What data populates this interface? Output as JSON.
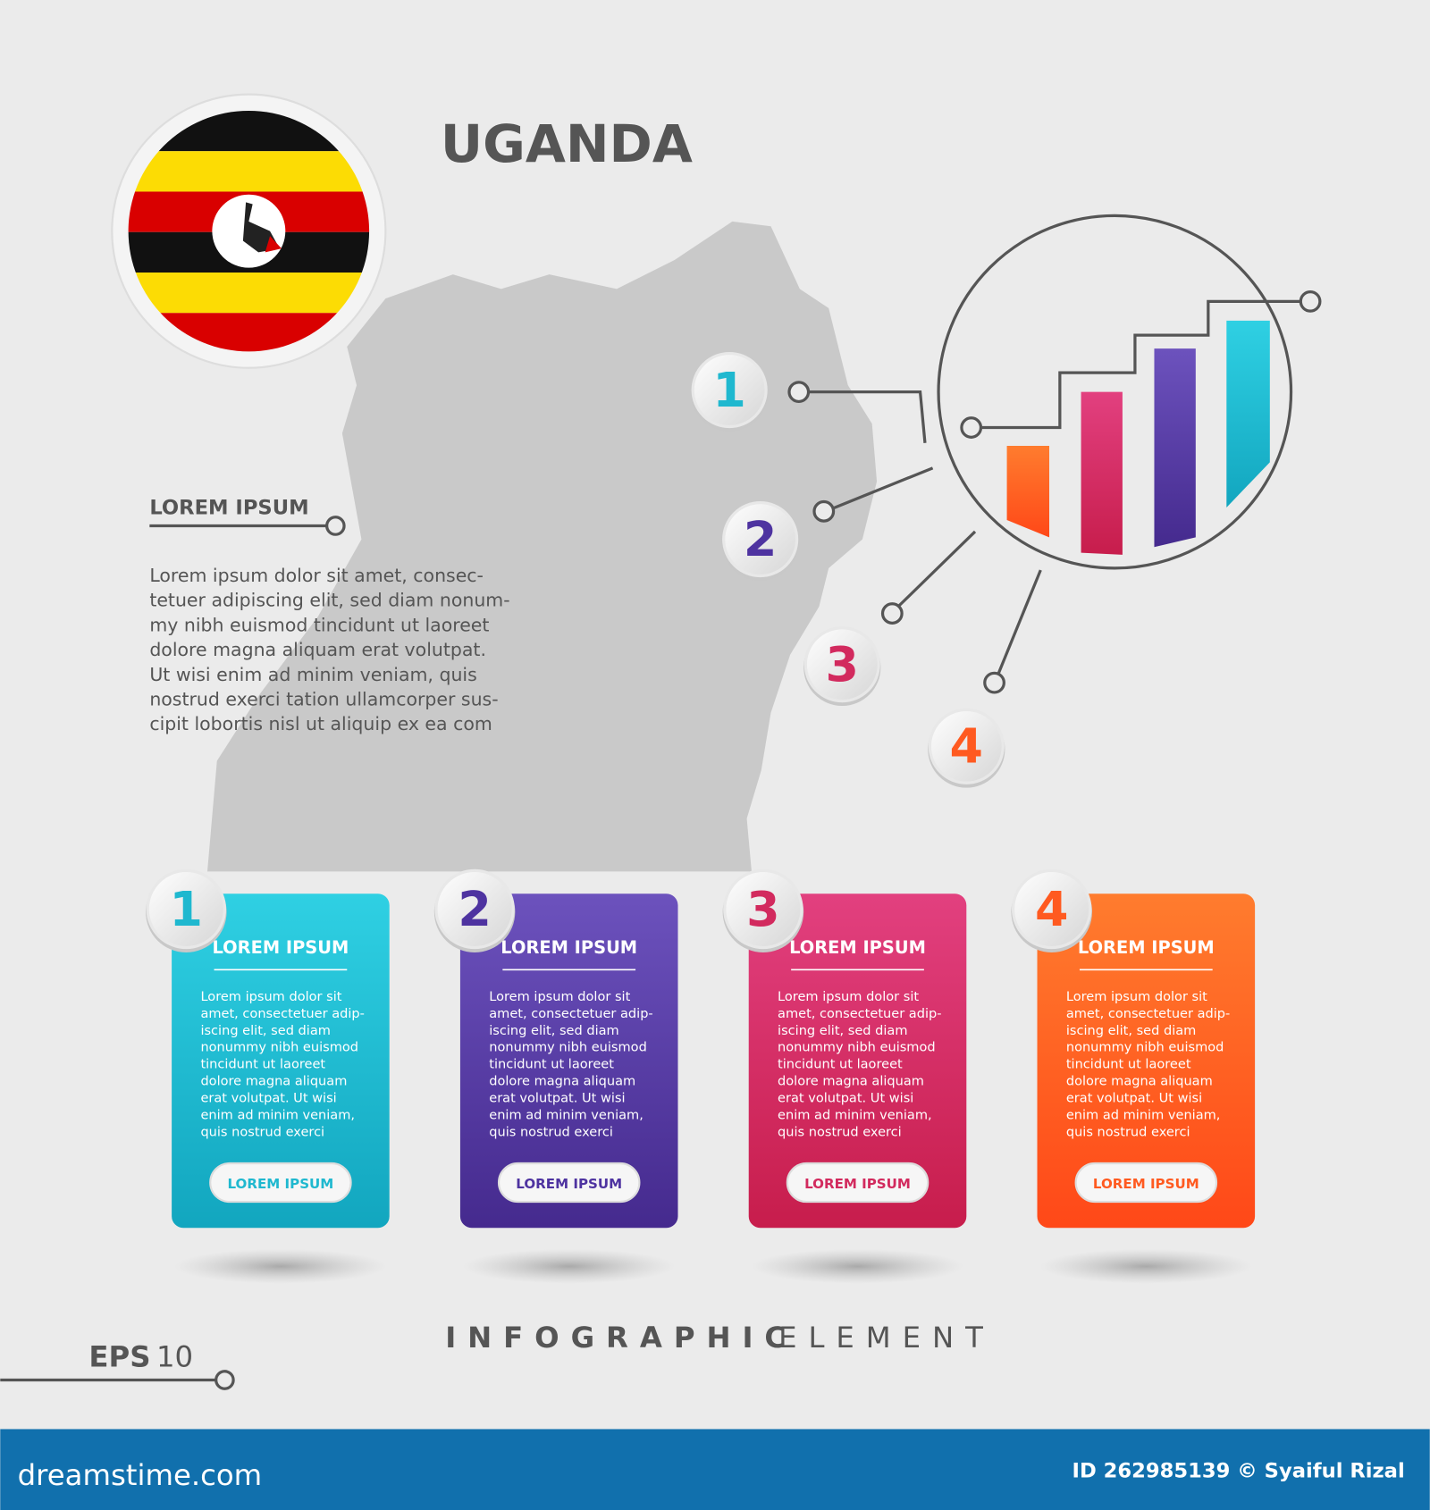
{
  "header": {
    "title": "UGANDA"
  },
  "sidebar": {
    "heading": "LOREM IPSUM",
    "lines": [
      "Lorem ipsum dolor sit amet, consec-",
      "tetuer adipiscing elit, sed diam nonum-",
      "my nibh euismod tincidunt ut laoreet",
      "dolore magna aliquam erat volutpat.",
      "Ut wisi enim ad minim veniam, quis",
      "nostrud exerci tation ullamcorper sus-",
      "cipit lobortis nisl ut aliquip ex ea com"
    ]
  },
  "markers": [
    "1",
    "2",
    "3",
    "4"
  ],
  "cards": [
    {
      "number": "1",
      "title": "LOREM IPSUM",
      "lines": [
        "Lorem ipsum dolor sit",
        "amet, consectetuer adip-",
        "iscing elit, sed diam",
        "nonummy nibh euismod",
        "tincidunt ut laoreet",
        "dolore magna aliquam",
        "erat volutpat. Ut wisi",
        "enim ad minim veniam,",
        "quis nostrud exerci"
      ],
      "button": "LOREM IPSUM"
    },
    {
      "number": "2",
      "title": "LOREM IPSUM",
      "lines": [
        "Lorem ipsum dolor sit",
        "amet, consectetuer adip-",
        "iscing elit, sed diam",
        "nonummy nibh euismod",
        "tincidunt ut laoreet",
        "dolore magna aliquam",
        "erat volutpat. Ut wisi",
        "enim ad minim veniam,",
        "quis nostrud exerci"
      ],
      "button": "LOREM IPSUM"
    },
    {
      "number": "3",
      "title": "LOREM IPSUM",
      "lines": [
        "Lorem ipsum dolor sit",
        "amet, consectetuer adip-",
        "iscing elit, sed diam",
        "nonummy nibh euismod",
        "tincidunt ut laoreet",
        "dolore magna aliquam",
        "erat volutpat. Ut wisi",
        "enim ad minim veniam,",
        "quis nostrud exerci"
      ],
      "button": "LOREM IPSUM"
    },
    {
      "number": "4",
      "title": "LOREM IPSUM",
      "lines": [
        "Lorem ipsum dolor sit",
        "amet, consectetuer adip-",
        "iscing elit, sed diam",
        "nonummy nibh euismod",
        "tincidunt ut laoreet",
        "dolore magna aliquam",
        "erat volutpat. Ut wisi",
        "enim ad minim veniam,",
        "quis nostrud exerci"
      ],
      "button": "LOREM IPSUM"
    }
  ],
  "footer": {
    "bold": "INFOGRAPHIC",
    "light": "ELEMENT",
    "eps": "EPS",
    "eps_version": "10"
  },
  "watermark_bar": {
    "site": "dreamstime.com",
    "credit": "ID 262985139 © Syaiful Rizal"
  }
}
